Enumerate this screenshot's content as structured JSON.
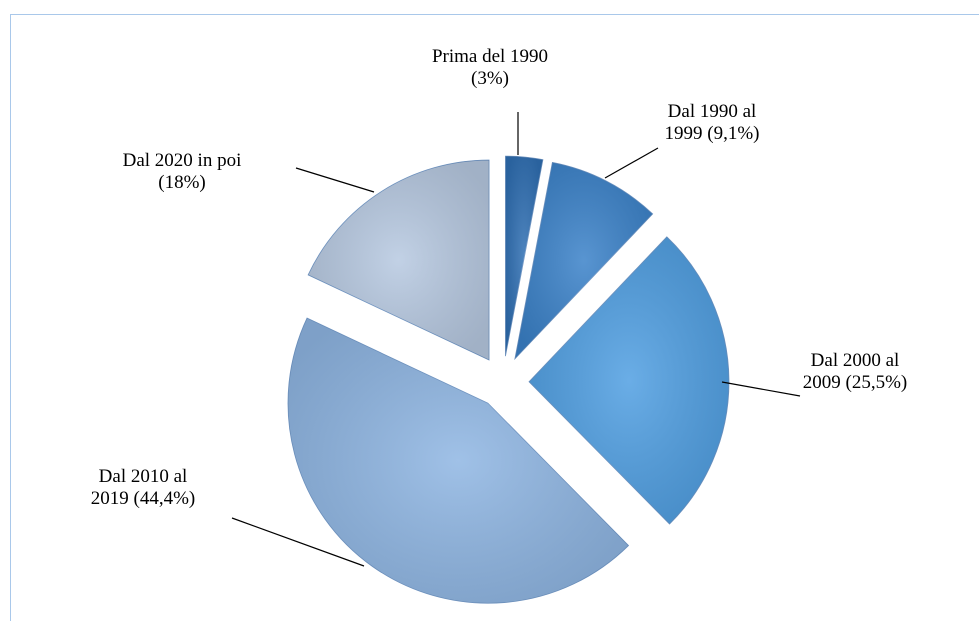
{
  "chart_data": {
    "type": "pie",
    "categories": [
      "Prima del 1990",
      "Dal 1990 al 1999",
      "Dal 2000 al 2009",
      "Dal 2010 al 2019",
      "Dal 2020 in poi"
    ],
    "values": [
      3,
      9.1,
      25.5,
      44.4,
      18
    ],
    "value_labels": [
      "(3%)",
      "(9,1%)",
      "(25,5%)",
      "(44,4%)",
      "(18%)"
    ],
    "colors": [
      "#2f6fb3",
      "#3b82c9",
      "#509fe2",
      "#8fb6e3",
      "#b7c9e1"
    ]
  }
}
